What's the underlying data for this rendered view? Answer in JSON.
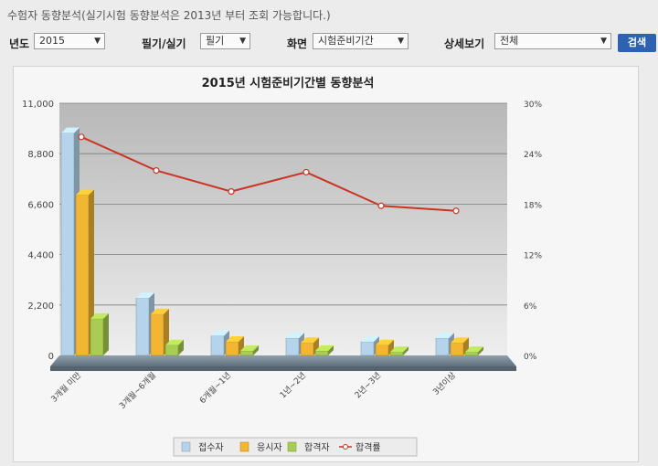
{
  "notice": "수험자 동향분석(실기시험 동향분석은 2013년 부터 조회 가능합니다.)",
  "filters": {
    "year_label": "년도",
    "year_value": "2015",
    "type_label": "필기/실기",
    "type_value": "필기",
    "view_label": "화면",
    "view_value": "시험준비기간",
    "detail_label": "상세보기",
    "detail_value": "전체",
    "search_label": "검색"
  },
  "colors": {
    "applicants": "#b5d3ea",
    "takers": "#f2b632",
    "passers": "#a9cc52",
    "pass_rate": "#cc3322",
    "search_button": "#2c62b0"
  },
  "chart_data": {
    "type": "bar",
    "title": "2015년 시험준비기간별 동향분석",
    "categories": [
      "3개월 미만",
      "3개월~6개월",
      "6개월~1년",
      "1년~2년",
      "2년~3년",
      "3년이상"
    ],
    "series": [
      {
        "name": "접수자",
        "axis": "left",
        "values": [
          9700,
          2500,
          850,
          750,
          600,
          750
        ]
      },
      {
        "name": "응시자",
        "axis": "left",
        "values": [
          7000,
          1800,
          600,
          550,
          450,
          550
        ]
      },
      {
        "name": "합격자",
        "axis": "left",
        "values": [
          1600,
          450,
          200,
          200,
          150,
          150
        ]
      },
      {
        "name": "합격률",
        "axis": "right",
        "type": "line",
        "values": [
          26,
          22,
          19.5,
          21.8,
          17.8,
          17.2
        ]
      }
    ],
    "y_left": {
      "ylim": [
        0,
        11000
      ],
      "ticks": [
        "0",
        "2,200",
        "4,400",
        "6,600",
        "8,800",
        "11,000"
      ]
    },
    "y_right": {
      "ylim": [
        0,
        30
      ],
      "ticks": [
        "0%",
        "6%",
        "12%",
        "18%",
        "24%",
        "30%"
      ]
    },
    "grid": true,
    "legend_position": "bottom"
  }
}
